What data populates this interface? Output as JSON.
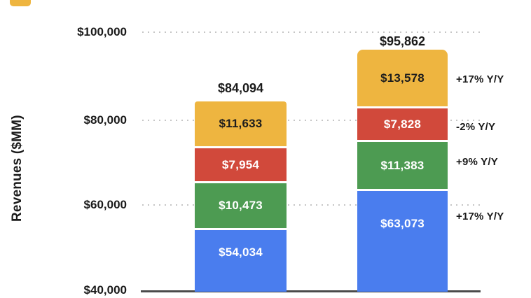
{
  "legend": {
    "swatch_color": "#EEB540"
  },
  "chart_data": {
    "type": "bar",
    "stacked": true,
    "title": "",
    "ylabel": "Revenues ($MM)",
    "ylim": [
      40000,
      100000
    ],
    "ytick_labels": [
      "$100,000",
      "$80,000",
      "$60,000",
      "$40,000"
    ],
    "grid": "dotted-horizontal",
    "legend_position": "top (cut off)",
    "bars": [
      {
        "total": 84094,
        "total_label": "$84,094",
        "segments": [
          {
            "name": "blue-segment",
            "color": "#4A7DEE",
            "value": 54034,
            "label": "$54,034"
          },
          {
            "name": "green-segment",
            "color": "#4D9B52",
            "value": 10473,
            "label": "$10,473"
          },
          {
            "name": "red-segment",
            "color": "#D1493B",
            "value": 7954,
            "label": "$7,954"
          },
          {
            "name": "yellow-segment",
            "color": "#EEB540",
            "value": 11633,
            "label": "$11,633"
          }
        ]
      },
      {
        "total": 95862,
        "total_label": "$95,862",
        "segments": [
          {
            "name": "blue-segment",
            "color": "#4A7DEE",
            "value": 63073,
            "label": "$63,073"
          },
          {
            "name": "green-segment",
            "color": "#4D9B52",
            "value": 11383,
            "label": "$11,383"
          },
          {
            "name": "red-segment",
            "color": "#D1493B",
            "value": 7828,
            "label": "$7,828"
          },
          {
            "name": "yellow-segment",
            "color": "#EEB540",
            "value": 13578,
            "label": "$13,578"
          }
        ]
      }
    ],
    "yoy_annotations": [
      {
        "label": "+17% Y/Y",
        "applies_to": "yellow-segment"
      },
      {
        "label": "-2% Y/Y",
        "applies_to": "red-segment"
      },
      {
        "label": "+9% Y/Y",
        "applies_to": "green-segment"
      },
      {
        "label": "+17% Y/Y",
        "applies_to": "blue-segment"
      }
    ],
    "axis_colors": {
      "baseline": "#4b4b4b",
      "gridline": "#c6c6c6",
      "text": "#1b1b1b"
    }
  }
}
